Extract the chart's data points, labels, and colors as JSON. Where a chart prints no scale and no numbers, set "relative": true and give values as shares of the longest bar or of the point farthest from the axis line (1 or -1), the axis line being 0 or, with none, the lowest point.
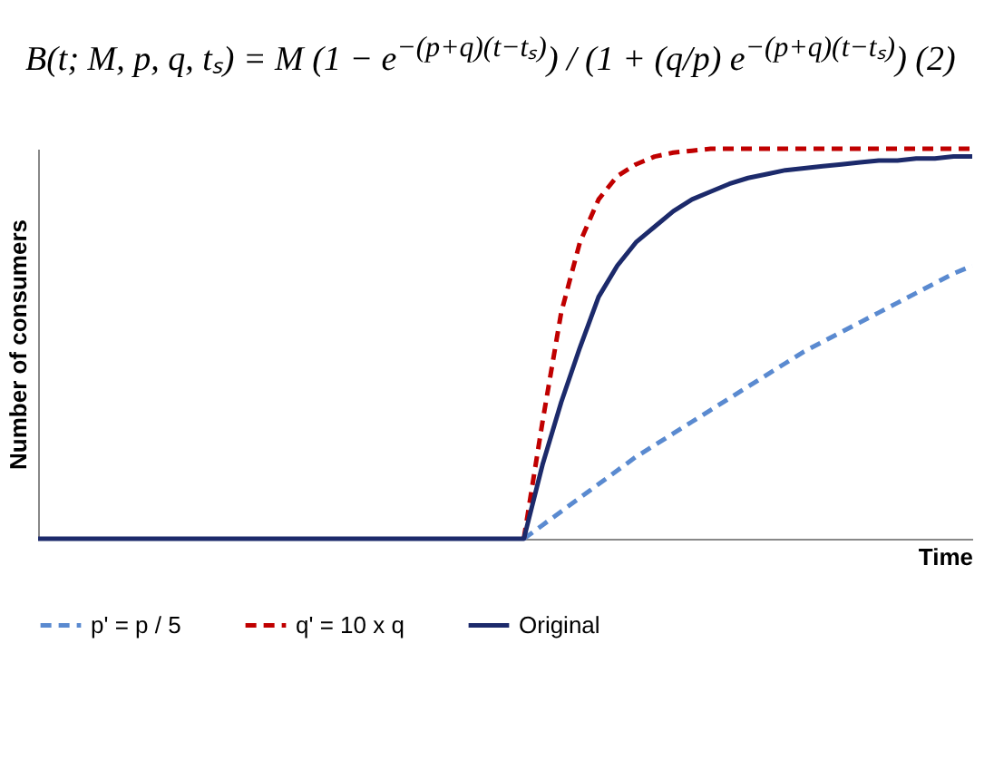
{
  "chart_data": {
    "type": "line",
    "title": "B(t; M, p, q, tₛ) = M (1 − e$^{−(p+q)(t−tₛ)}$) / (1 + (q/p) e$^{−(p+q)(t−tₛ)}$)   (2)",
    "xlabel": "Time",
    "ylabel": "Number of consumers",
    "relative": true,
    "legend": "bottom",
    "marker": "none",
    "categories": [
      null,
      null,
      null,
      null,
      null,
      null,
      null,
      null,
      null,
      null,
      null,
      null,
      null,
      null,
      null,
      null,
      null,
      null,
      null,
      null,
      null,
      null,
      null,
      null,
      null,
      null,
      null,
      null,
      null,
      null,
      null,
      null,
      null,
      null,
      null,
      null,
      null,
      null,
      null,
      null,
      null,
      null,
      null,
      null,
      null,
      null,
      null,
      null,
      null,
      null,
      null
    ],
    "series": [
      {
        "name": "p' = p / 5",
        "color": "#5a8ad0",
        "line_style": "dashed",
        "values": [
          null,
          null,
          null,
          null,
          null,
          null,
          null,
          null,
          null,
          null,
          null,
          null,
          null,
          null,
          null,
          null,
          null,
          null,
          null,
          null,
          null,
          null,
          null,
          null,
          null,
          null,
          0,
          0.035,
          0.07,
          0.105,
          0.14,
          0.175,
          0.21,
          0.24,
          0.27,
          0.3,
          0.33,
          0.36,
          0.39,
          0.42,
          0.45,
          0.48,
          0.505,
          0.53,
          0.555,
          0.58,
          0.605,
          0.63,
          0.655,
          0.68,
          0.7
        ]
      },
      {
        "name": "q' = 10 x q",
        "color": "#c00000",
        "line_style": "dashed",
        "values": [
          null,
          null,
          null,
          null,
          null,
          null,
          null,
          null,
          null,
          null,
          null,
          null,
          null,
          null,
          null,
          null,
          null,
          null,
          null,
          null,
          null,
          null,
          null,
          null,
          null,
          null,
          0,
          0.3,
          0.58,
          0.76,
          0.87,
          0.93,
          0.96,
          0.98,
          0.99,
          0.995,
          1,
          1,
          1,
          1,
          1,
          1,
          1,
          1,
          1,
          1,
          1,
          1,
          1,
          1,
          1
        ]
      },
      {
        "name": "Original",
        "color": "#1c2a6b",
        "line_style": "solid",
        "values": [
          0,
          0,
          0,
          0,
          0,
          0,
          0,
          0,
          0,
          0,
          0,
          0,
          0,
          0,
          0,
          0,
          0,
          0,
          0,
          0,
          0,
          0,
          0,
          0,
          0,
          0,
          0,
          0.19,
          0.35,
          0.49,
          0.62,
          0.7,
          0.76,
          0.8,
          0.84,
          0.87,
          0.89,
          0.91,
          0.925,
          0.935,
          0.945,
          0.95,
          0.955,
          0.96,
          0.965,
          0.97,
          0.97,
          0.975,
          0.975,
          0.98,
          0.98
        ]
      }
    ]
  }
}
